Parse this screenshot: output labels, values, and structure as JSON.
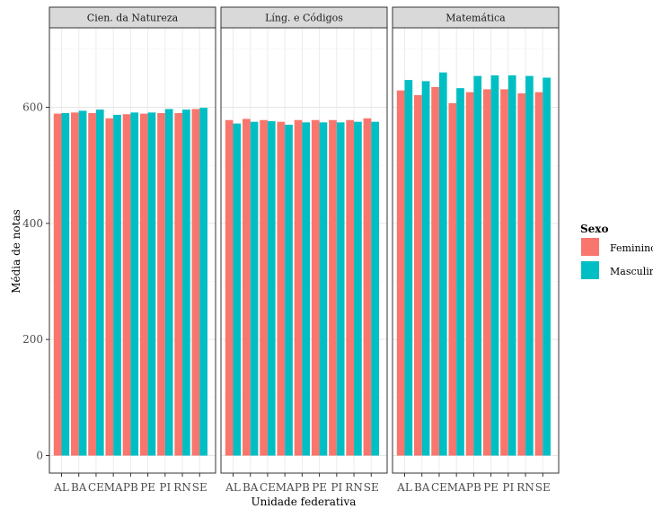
{
  "chart_data": {
    "type": "bar",
    "facets": [
      "Cien. da Natureza",
      "Líng. e Códigos",
      "Matemática"
    ],
    "categories": [
      "AL",
      "BA",
      "CE",
      "MA",
      "PB",
      "PE",
      "PI",
      "RN",
      "SE"
    ],
    "series": [
      {
        "name": "Feminino",
        "color": "#F8766D",
        "values": [
          [
            589,
            591,
            590,
            581,
            588,
            589,
            590,
            590,
            597
          ],
          [
            578,
            580,
            578,
            575,
            578,
            578,
            578,
            578,
            581
          ],
          [
            629,
            621,
            635,
            607,
            626,
            631,
            631,
            624,
            626
          ]
        ]
      },
      {
        "name": "Masculino",
        "color": "#00BFC4",
        "values": [
          [
            590,
            594,
            596,
            587,
            591,
            591,
            597,
            596,
            599
          ],
          [
            572,
            575,
            576,
            570,
            574,
            574,
            574,
            575,
            575
          ],
          [
            647,
            645,
            660,
            633,
            654,
            655,
            655,
            654,
            651
          ]
        ]
      }
    ],
    "xlabel": "Unidade federativa",
    "ylabel": "Média de notas",
    "ylim": [
      0,
      740
    ],
    "yticks": [
      0,
      200,
      400,
      600
    ],
    "grid": true,
    "legend": {
      "title": "Sexo",
      "position": "right"
    }
  }
}
